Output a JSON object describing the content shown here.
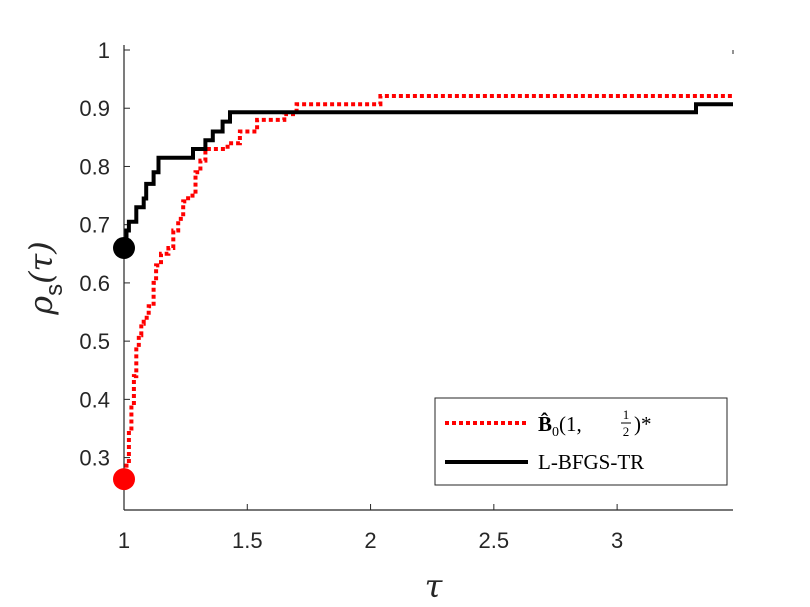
{
  "chart_data": {
    "type": "line",
    "xlabel": "τ",
    "ylabel_main": "ρ",
    "ylabel_sub": "s",
    "ylabel_arg": "(τ)",
    "xlim": [
      1,
      3.47
    ],
    "ylim": [
      0.21,
      1.0
    ],
    "xticks": [
      1,
      1.5,
      2,
      2.5,
      3
    ],
    "xtick_labels": [
      "1",
      "1.5",
      "2",
      "2.5",
      "3"
    ],
    "yticks": [
      0.3,
      0.4,
      0.5,
      0.6,
      0.7,
      0.8,
      0.9,
      1
    ],
    "ytick_labels": [
      "0.3",
      "0.4",
      "0.5",
      "0.6",
      "0.7",
      "0.8",
      "0.9",
      "1"
    ],
    "grid": false,
    "legend_position": "bottom-right",
    "series": [
      {
        "name": "B̂0(1, 1/2)*",
        "legend_main": "B̂",
        "legend_sub": "0",
        "legend_args": "(1, ",
        "legend_frac_num": "1",
        "legend_frac_den": "2",
        "legend_close": ")*",
        "color": "#ff0000",
        "style": "dotted",
        "marker_start": [
          1,
          0.263
        ],
        "points": [
          [
            1,
            0.263
          ],
          [
            1.01,
            0.263
          ],
          [
            1.01,
            0.29
          ],
          [
            1.02,
            0.29
          ],
          [
            1.02,
            0.35
          ],
          [
            1.03,
            0.35
          ],
          [
            1.03,
            0.39
          ],
          [
            1.04,
            0.39
          ],
          [
            1.04,
            0.44
          ],
          [
            1.05,
            0.44
          ],
          [
            1.05,
            0.49
          ],
          [
            1.06,
            0.49
          ],
          [
            1.06,
            0.51
          ],
          [
            1.07,
            0.51
          ],
          [
            1.07,
            0.53
          ],
          [
            1.08,
            0.53
          ],
          [
            1.08,
            0.54
          ],
          [
            1.1,
            0.54
          ],
          [
            1.1,
            0.56
          ],
          [
            1.12,
            0.56
          ],
          [
            1.12,
            0.6
          ],
          [
            1.13,
            0.6
          ],
          [
            1.13,
            0.63
          ],
          [
            1.15,
            0.63
          ],
          [
            1.15,
            0.65
          ],
          [
            1.18,
            0.65
          ],
          [
            1.18,
            0.66
          ],
          [
            1.2,
            0.66
          ],
          [
            1.2,
            0.69
          ],
          [
            1.22,
            0.69
          ],
          [
            1.22,
            0.71
          ],
          [
            1.24,
            0.71
          ],
          [
            1.24,
            0.74
          ],
          [
            1.26,
            0.74
          ],
          [
            1.26,
            0.75
          ],
          [
            1.29,
            0.75
          ],
          [
            1.29,
            0.79
          ],
          [
            1.31,
            0.79
          ],
          [
            1.31,
            0.81
          ],
          [
            1.33,
            0.81
          ],
          [
            1.33,
            0.83
          ],
          [
            1.42,
            0.83
          ],
          [
            1.42,
            0.84
          ],
          [
            1.47,
            0.84
          ],
          [
            1.47,
            0.86
          ],
          [
            1.54,
            0.86
          ],
          [
            1.54,
            0.88
          ],
          [
            1.65,
            0.88
          ],
          [
            1.65,
            0.89
          ],
          [
            1.7,
            0.89
          ],
          [
            1.7,
            0.907
          ],
          [
            2.04,
            0.907
          ],
          [
            2.04,
            0.921
          ],
          [
            3.47,
            0.921
          ]
        ]
      },
      {
        "name": "L-BFGS-TR",
        "color": "#000000",
        "style": "solid",
        "marker_start": [
          1,
          0.66
        ],
        "points": [
          [
            1,
            0.66
          ],
          [
            1.01,
            0.66
          ],
          [
            1.01,
            0.69
          ],
          [
            1.02,
            0.69
          ],
          [
            1.02,
            0.705
          ],
          [
            1.05,
            0.705
          ],
          [
            1.05,
            0.73
          ],
          [
            1.08,
            0.73
          ],
          [
            1.08,
            0.745
          ],
          [
            1.09,
            0.745
          ],
          [
            1.09,
            0.77
          ],
          [
            1.12,
            0.77
          ],
          [
            1.12,
            0.79
          ],
          [
            1.14,
            0.79
          ],
          [
            1.14,
            0.815
          ],
          [
            1.28,
            0.815
          ],
          [
            1.28,
            0.83
          ],
          [
            1.33,
            0.83
          ],
          [
            1.33,
            0.845
          ],
          [
            1.36,
            0.845
          ],
          [
            1.36,
            0.86
          ],
          [
            1.4,
            0.86
          ],
          [
            1.4,
            0.877
          ],
          [
            1.43,
            0.877
          ],
          [
            1.43,
            0.893
          ],
          [
            3.32,
            0.893
          ],
          [
            3.32,
            0.907
          ],
          [
            3.47,
            0.907
          ]
        ]
      }
    ]
  }
}
